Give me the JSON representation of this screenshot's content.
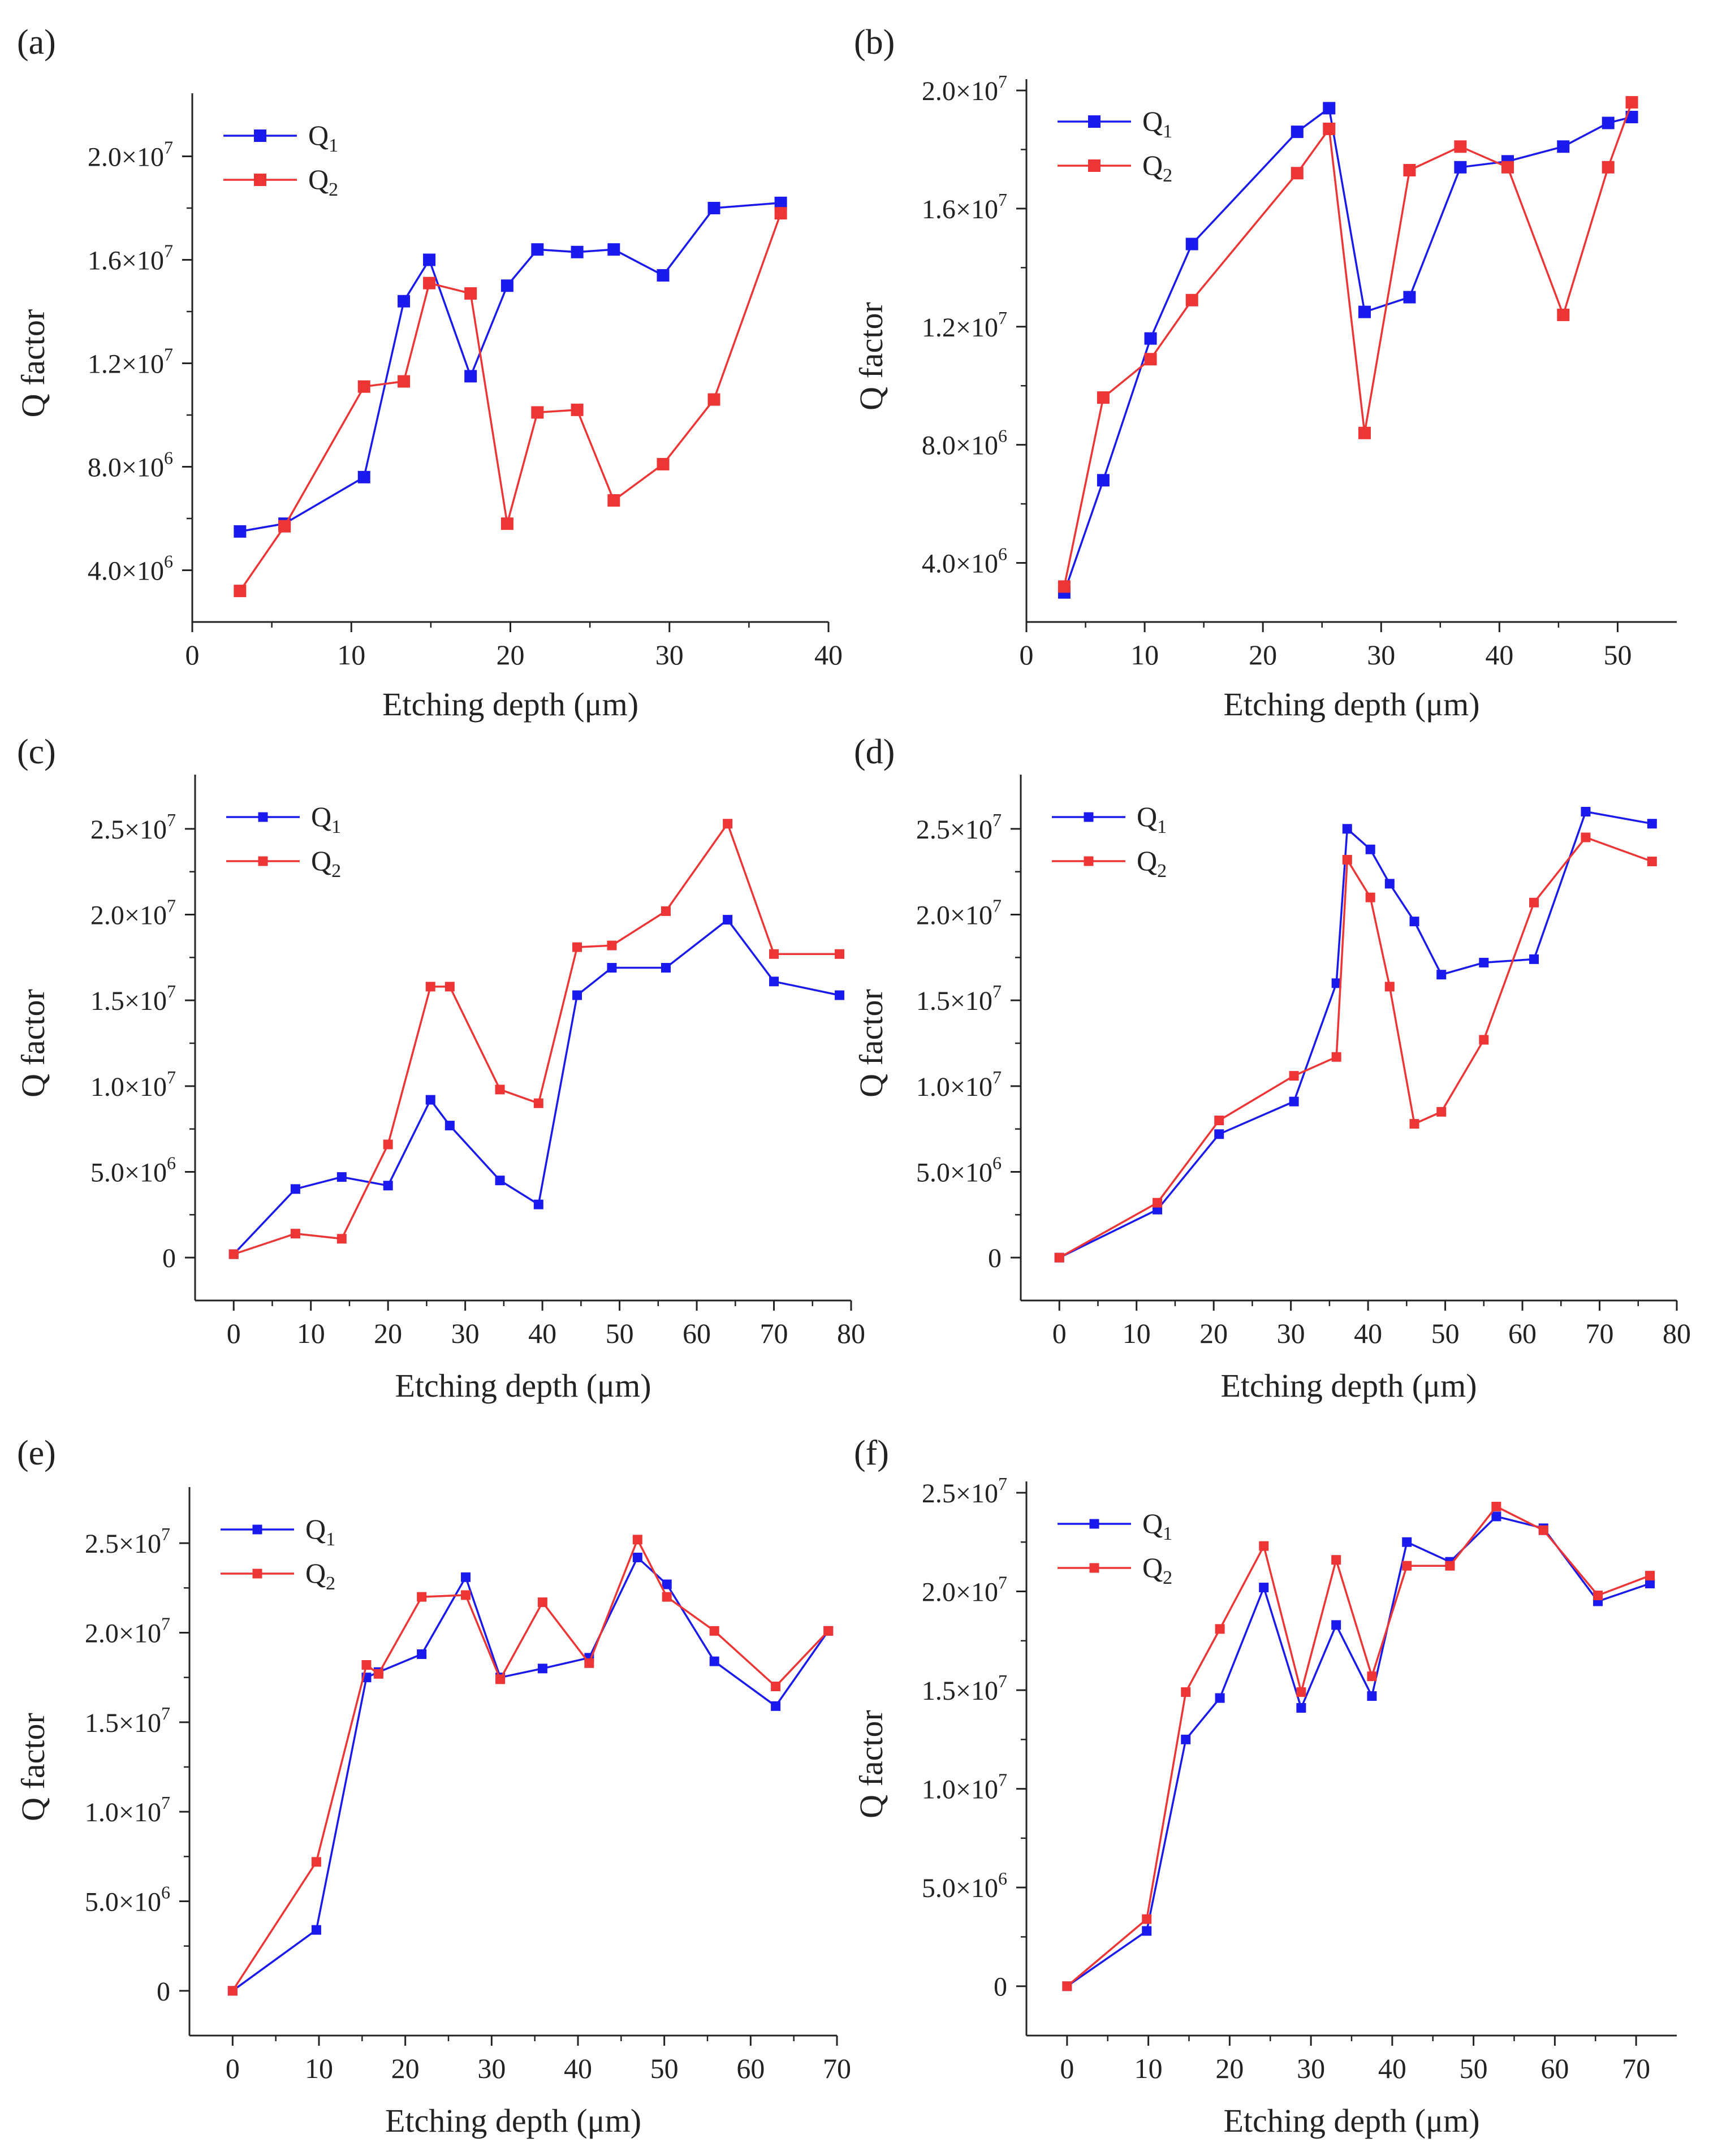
{
  "figure": {
    "xlabel": "Etching depth (μm)",
    "ylabel": "Q factor"
  },
  "colors": {
    "q1": "#1a1aee",
    "q2": "#ee3535",
    "axis": "#222222"
  },
  "chart_data": [
    {
      "panel": "(a)",
      "type": "line",
      "title": "",
      "xlabel": "Etching depth (μm)",
      "ylabel": "Q factor",
      "xlim": [
        0,
        40
      ],
      "ylim": [
        2000000,
        22000000
      ],
      "xticks": [
        0,
        10,
        20,
        30,
        40
      ],
      "yticks": [
        {
          "v": 4000000,
          "m": "4.0",
          "e": "6"
        },
        {
          "v": 8000000,
          "m": "8.0",
          "e": "6"
        },
        {
          "v": 12000000,
          "m": "1.2",
          "e": "7"
        },
        {
          "v": 16000000,
          "m": "1.6",
          "e": "7"
        },
        {
          "v": 20000000,
          "m": "2.0",
          "e": "7"
        }
      ],
      "legend": "top-left",
      "series": [
        {
          "name": "Q",
          "sub": "1",
          "color": "#1a1aee",
          "x": [
            3,
            5.8,
            10.8,
            13.3,
            14.9,
            17.5,
            19.8,
            21.7,
            24.2,
            26.5,
            29.6,
            32.8,
            37
          ],
          "y": [
            5500000,
            5800000,
            7600000,
            14400000,
            16000000,
            11500000,
            15000000,
            16400000,
            16300000,
            16400000,
            15400000,
            18000000,
            18200000
          ]
        },
        {
          "name": "Q",
          "sub": "2",
          "color": "#ee3535",
          "x": [
            3,
            5.8,
            10.8,
            13.3,
            14.9,
            17.5,
            19.8,
            21.7,
            24.2,
            26.5,
            29.6,
            32.8,
            37
          ],
          "y": [
            3200000,
            5700000,
            11100000,
            11300000,
            15100000,
            14700000,
            5800000,
            10100000,
            10200000,
            6700000,
            8100000,
            10600000,
            17800000
          ]
        }
      ]
    },
    {
      "panel": "(b)",
      "type": "line",
      "title": "",
      "xlabel": "Etching depth (μm)",
      "ylabel": "Q factor",
      "xlim": [
        0,
        55
      ],
      "ylim": [
        2000000,
        20000000
      ],
      "xticks": [
        0,
        10,
        20,
        30,
        40,
        50
      ],
      "yticks": [
        {
          "v": 4000000,
          "m": "4.0",
          "e": "6"
        },
        {
          "v": 8000000,
          "m": "8.0",
          "e": "6"
        },
        {
          "v": 12000000,
          "m": "1.2",
          "e": "7"
        },
        {
          "v": 16000000,
          "m": "1.6",
          "e": "7"
        },
        {
          "v": 20000000,
          "m": "2.0",
          "e": "7"
        }
      ],
      "legend": "top-left",
      "series": [
        {
          "name": "Q",
          "sub": "1",
          "color": "#1a1aee",
          "x": [
            3.2,
            6.5,
            10.5,
            14,
            22.9,
            25.6,
            28.6,
            32.4,
            36.7,
            40.7,
            45.4,
            49.2,
            51.2
          ],
          "y": [
            3000000,
            6800000,
            11600000,
            14800000,
            18600000,
            19400000,
            12500000,
            13000000,
            17400000,
            17600000,
            18100000,
            18900000,
            19100000
          ]
        },
        {
          "name": "Q",
          "sub": "2",
          "color": "#ee3535",
          "x": [
            3.2,
            6.5,
            10.5,
            14,
            22.9,
            25.6,
            28.6,
            32.4,
            36.7,
            40.7,
            45.4,
            49.2,
            51.2
          ],
          "y": [
            3200000,
            9600000,
            10900000,
            12900000,
            17200000,
            18700000,
            8400000,
            17300000,
            18100000,
            17400000,
            12400000,
            17400000,
            19600000
          ]
        }
      ]
    },
    {
      "panel": "(c)",
      "type": "line",
      "title": "",
      "xlabel": "Etching depth (μm)",
      "ylabel": "Q factor",
      "xlim": [
        -5,
        80
      ],
      "ylim": [
        -2500000,
        27500000
      ],
      "xticks": [
        0,
        10,
        20,
        30,
        40,
        50,
        60,
        70,
        80
      ],
      "yticks": [
        {
          "v": 0,
          "m": "0",
          "e": ""
        },
        {
          "v": 5000000,
          "m": "5.0",
          "e": "6"
        },
        {
          "v": 10000000,
          "m": "1.0",
          "e": "7"
        },
        {
          "v": 15000000,
          "m": "1.5",
          "e": "7"
        },
        {
          "v": 20000000,
          "m": "2.0",
          "e": "7"
        },
        {
          "v": 25000000,
          "m": "2.5",
          "e": "7"
        }
      ],
      "legend": "top-left",
      "series": [
        {
          "name": "Q",
          "sub": "1",
          "color": "#1a1aee",
          "x": [
            0,
            8,
            14,
            20,
            25.5,
            28,
            34.5,
            39.5,
            44.5,
            49,
            56,
            64,
            70,
            78.5
          ],
          "y": [
            200000,
            4000000,
            4700000,
            4200000,
            9200000,
            7700000,
            4500000,
            3100000,
            15300000,
            16900000,
            16900000,
            19700000,
            16100000,
            15300000
          ]
        },
        {
          "name": "Q",
          "sub": "2",
          "color": "#ee3535",
          "x": [
            0,
            8,
            14,
            20,
            25.5,
            28,
            34.5,
            39.5,
            44.5,
            49,
            56,
            64,
            70,
            78.5
          ],
          "y": [
            200000,
            1400000,
            1100000,
            6600000,
            15800000,
            15800000,
            9800000,
            9000000,
            18100000,
            18200000,
            20200000,
            25300000,
            17700000,
            17700000
          ]
        }
      ]
    },
    {
      "panel": "(d)",
      "type": "line",
      "title": "",
      "xlabel": "Etching depth (μm)",
      "ylabel": "Q factor",
      "xlim": [
        -5,
        80
      ],
      "ylim": [
        -2500000,
        27500000
      ],
      "xticks": [
        0,
        10,
        20,
        30,
        40,
        50,
        60,
        70,
        80
      ],
      "yticks": [
        {
          "v": 0,
          "m": "0",
          "e": ""
        },
        {
          "v": 5000000,
          "m": "5.0",
          "e": "6"
        },
        {
          "v": 10000000,
          "m": "1.0",
          "e": "7"
        },
        {
          "v": 15000000,
          "m": "1.5",
          "e": "7"
        },
        {
          "v": 20000000,
          "m": "2.0",
          "e": "7"
        },
        {
          "v": 25000000,
          "m": "2.5",
          "e": "7"
        }
      ],
      "legend": "top-left",
      "series": [
        {
          "name": "Q",
          "sub": "1",
          "color": "#1a1aee",
          "x": [
            0,
            12.7,
            20.7,
            30.4,
            35.9,
            37.3,
            40.3,
            42.8,
            46,
            49.5,
            55,
            61.5,
            68.2,
            76.8
          ],
          "y": [
            0,
            2800000,
            7200000,
            9100000,
            16000000,
            25000000,
            23800000,
            21800000,
            19600000,
            16500000,
            17200000,
            17400000,
            26000000,
            25300000
          ]
        },
        {
          "name": "Q",
          "sub": "2",
          "color": "#ee3535",
          "x": [
            0,
            12.7,
            20.7,
            30.4,
            35.9,
            37.3,
            40.3,
            42.8,
            46,
            49.5,
            55,
            61.5,
            68.2,
            76.8
          ],
          "y": [
            0,
            3200000,
            8000000,
            10600000,
            11700000,
            23200000,
            21000000,
            15800000,
            7800000,
            8500000,
            12700000,
            20700000,
            24500000,
            23100000
          ]
        }
      ]
    },
    {
      "panel": "(e)",
      "type": "line",
      "title": "",
      "xlabel": "Etching depth (μm)",
      "ylabel": "Q factor",
      "xlim": [
        -5,
        70
      ],
      "ylim": [
        -2500000,
        27500000
      ],
      "xticks": [
        0,
        10,
        20,
        30,
        40,
        50,
        60,
        70
      ],
      "yticks": [
        {
          "v": 0,
          "m": "0",
          "e": ""
        },
        {
          "v": 5000000,
          "m": "5.0",
          "e": "6"
        },
        {
          "v": 10000000,
          "m": "1.0",
          "e": "7"
        },
        {
          "v": 15000000,
          "m": "1.5",
          "e": "7"
        },
        {
          "v": 20000000,
          "m": "2.0",
          "e": "7"
        },
        {
          "v": 25000000,
          "m": "2.5",
          "e": "7"
        }
      ],
      "legend": "top-left",
      "series": [
        {
          "name": "Q",
          "sub": "1",
          "color": "#1a1aee",
          "x": [
            0,
            9.7,
            15.5,
            16.9,
            21.9,
            27,
            31,
            35.9,
            41.3,
            46.9,
            50.3,
            55.8,
            62.9,
            69
          ],
          "y": [
            0,
            3400000,
            17500000,
            17800000,
            18800000,
            23100000,
            17500000,
            18000000,
            18600000,
            24200000,
            22700000,
            18400000,
            15900000,
            20100000
          ]
        },
        {
          "name": "Q",
          "sub": "2",
          "color": "#ee3535",
          "x": [
            0,
            9.7,
            15.5,
            16.9,
            21.9,
            27,
            31,
            35.9,
            41.3,
            46.9,
            50.3,
            55.8,
            62.9,
            69
          ],
          "y": [
            0,
            7200000,
            18200000,
            17700000,
            22000000,
            22100000,
            17400000,
            21700000,
            18300000,
            25200000,
            22000000,
            20100000,
            17000000,
            20100000
          ]
        }
      ]
    },
    {
      "panel": "(f)",
      "type": "line",
      "title": "",
      "xlabel": "Etching depth (μm)",
      "ylabel": "Q factor",
      "xlim": [
        -5,
        75
      ],
      "ylim": [
        -2500000,
        25000000
      ],
      "xticks": [
        0,
        10,
        20,
        30,
        40,
        50,
        60,
        70
      ],
      "yticks": [
        {
          "v": 0,
          "m": "0",
          "e": ""
        },
        {
          "v": 5000000,
          "m": "5.0",
          "e": "6"
        },
        {
          "v": 10000000,
          "m": "1.0",
          "e": "7"
        },
        {
          "v": 15000000,
          "m": "1.5",
          "e": "7"
        },
        {
          "v": 20000000,
          "m": "2.0",
          "e": "7"
        },
        {
          "v": 25000000,
          "m": "2.5",
          "e": "7"
        }
      ],
      "legend": "top-left",
      "series": [
        {
          "name": "Q",
          "sub": "1",
          "color": "#1a1aee",
          "x": [
            0,
            9.8,
            14.6,
            18.8,
            24.2,
            28.8,
            33.1,
            37.5,
            41.8,
            47.1,
            52.8,
            58.6,
            65.3,
            71.7
          ],
          "y": [
            0,
            2800000,
            12500000,
            14600000,
            20200000,
            14100000,
            18300000,
            14700000,
            22500000,
            21500000,
            23800000,
            23200000,
            19500000,
            20400000
          ]
        },
        {
          "name": "Q",
          "sub": "2",
          "color": "#ee3535",
          "x": [
            0,
            9.8,
            14.6,
            18.8,
            24.2,
            28.8,
            33.1,
            37.5,
            41.8,
            47.1,
            52.8,
            58.6,
            65.3,
            71.7
          ],
          "y": [
            0,
            3400000,
            14900000,
            18100000,
            22300000,
            14900000,
            21600000,
            15700000,
            21300000,
            21300000,
            24300000,
            23100000,
            19800000,
            20800000
          ]
        }
      ]
    }
  ]
}
